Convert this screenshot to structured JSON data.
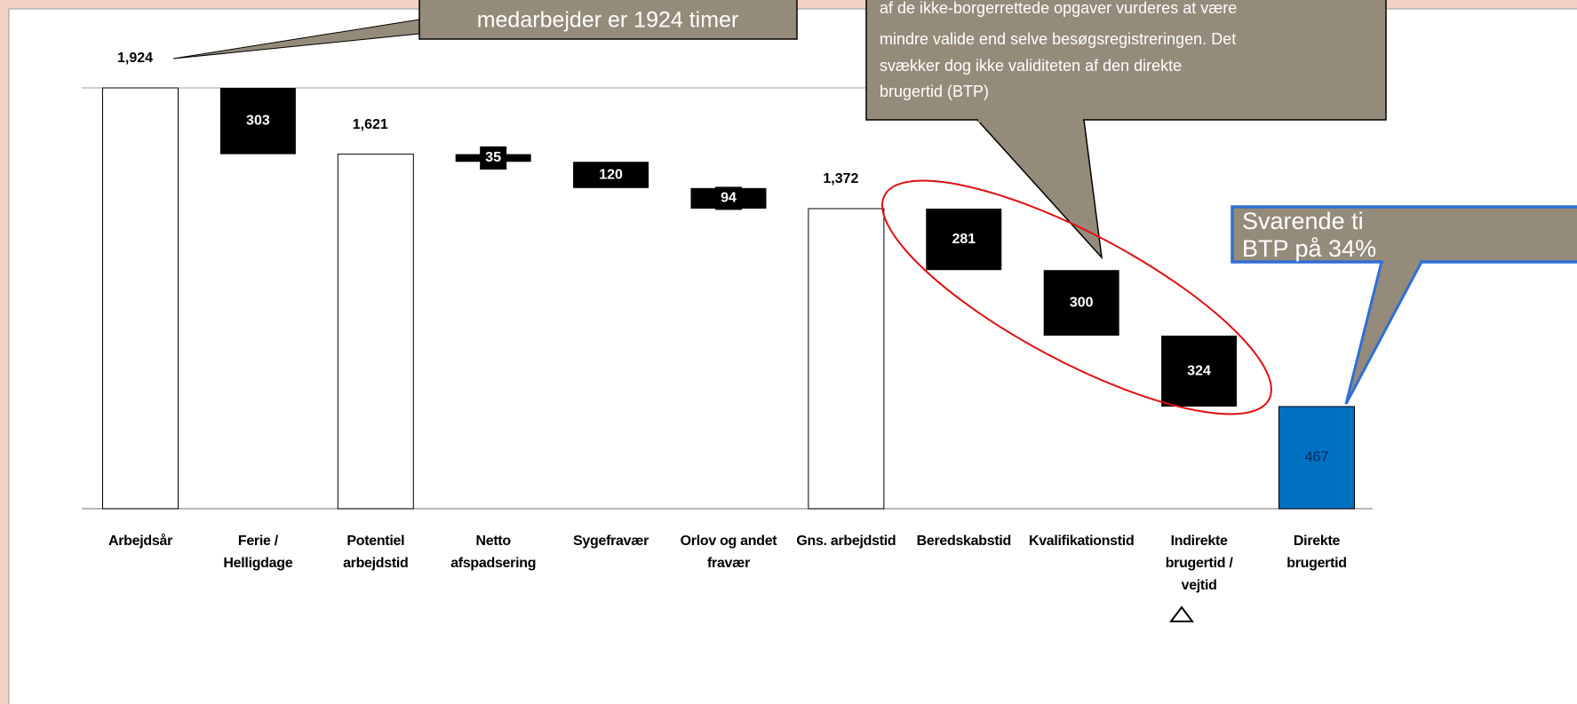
{
  "chart_data": {
    "type": "waterfall",
    "categories": [
      "Arbejdsår",
      "Ferie /\nHelligdage",
      "Potentiel\narbejdstid",
      "Netto\nafspadsering",
      "Sygefravær",
      "Orlov og andet\nfravær",
      "Gns. arbejdstid",
      "Beredskabstid",
      "Kvalifikationstid",
      "Indirekte\nbrugertid /\nvejtid",
      "Direkte\nbrugertid"
    ],
    "values": [
      1924,
      303,
      1621,
      35,
      120,
      94,
      1372,
      281,
      300,
      324,
      467
    ],
    "value_labels": [
      "1,924",
      "303",
      "1,621",
      "35",
      "120",
      "94",
      "1,372",
      "281",
      "300",
      "324",
      "467"
    ],
    "measures": [
      "absolute",
      "relative",
      "absolute",
      "relative",
      "relative",
      "relative",
      "absolute",
      "relative",
      "relative",
      "relative",
      "absolute"
    ],
    "colors": [
      "#ffffff",
      "#000000",
      "#ffffff",
      "#000000",
      "#000000",
      "#000000",
      "#ffffff",
      "#000000",
      "#000000",
      "#000000",
      "#0070c0"
    ],
    "ylim": [
      0,
      1924
    ],
    "annotations": [
      {
        "lines": [
          "medarbejder er 1924 timer"
        ]
      },
      {
        "lines": [
          "af de ikke-borgerrettede opgaver vurderes at være",
          "mindre valide end selve besøgsregistreringen. Det",
          "svækker dog ikke validiteten af den direkte",
          "brugertid (BTP)"
        ]
      },
      {
        "lines": [
          "Svarende ti",
          "BTP på 34%"
        ]
      }
    ]
  }
}
